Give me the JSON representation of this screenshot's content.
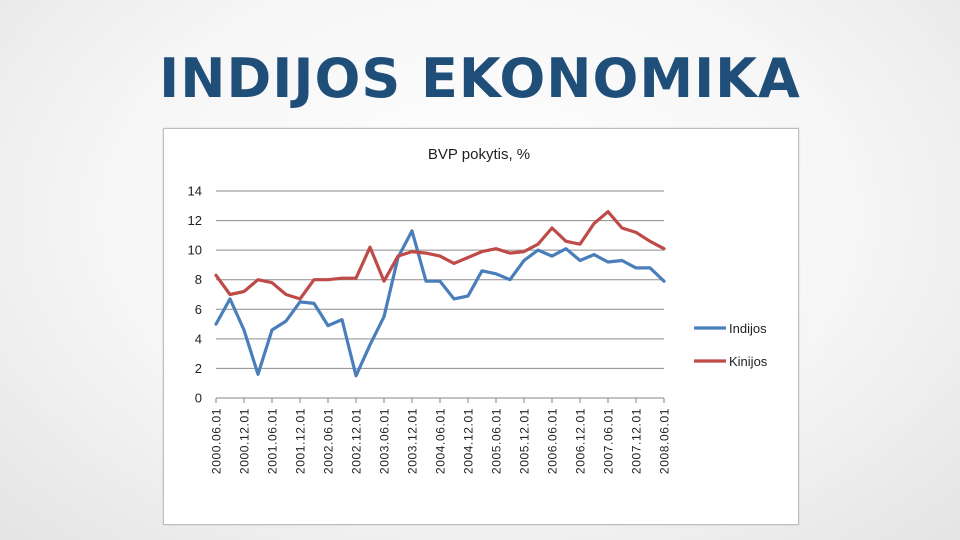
{
  "slide": {
    "title": "INDIJOS EKONOMIKA"
  },
  "chart_data": {
    "type": "line",
    "title": "BVP pokytis, %",
    "xlabel": "",
    "ylabel": "",
    "ylim": [
      0,
      14
    ],
    "yticks": [
      0,
      2,
      4,
      6,
      8,
      10,
      12,
      14
    ],
    "grid": "horizontal",
    "legend_position": "right",
    "x": [
      "2000.06.01",
      "2000.09.01",
      "2000.12.01",
      "2001.03.01",
      "2001.06.01",
      "2001.09.01",
      "2001.12.01",
      "2002.03.01",
      "2002.06.01",
      "2002.09.01",
      "2002.12.01",
      "2003.03.01",
      "2003.06.01",
      "2003.09.01",
      "2003.12.01",
      "2004.03.01",
      "2004.06.01",
      "2004.09.01",
      "2004.12.01",
      "2005.03.01",
      "2005.06.01",
      "2005.09.01",
      "2005.12.01",
      "2006.03.01",
      "2006.06.01",
      "2006.09.01",
      "2006.12.01",
      "2007.03.01",
      "2007.06.01",
      "2007.09.01",
      "2007.12.01",
      "2008.03.01",
      "2008.06.01"
    ],
    "x_tick_labels": [
      "2000.06.01",
      "2000.12.01",
      "2001.06.01",
      "2001.12.01",
      "2002.06.01",
      "2002.12.01",
      "2003.06.01",
      "2003.12.01",
      "2004.06.01",
      "2004.12.01",
      "2005.06.01",
      "2005.12.01",
      "2006.06.01",
      "2006.12.01",
      "2007.06.01",
      "2007.12.01",
      "2008.06.01"
    ],
    "series": [
      {
        "name": "Indijos",
        "color": "#4a7ebb",
        "values": [
          5.0,
          6.7,
          4.6,
          1.6,
          4.6,
          5.2,
          6.5,
          6.4,
          4.9,
          5.3,
          1.5,
          3.6,
          5.5,
          9.5,
          11.3,
          7.9,
          7.9,
          6.7,
          6.9,
          8.6,
          8.4,
          8.0,
          9.3,
          10.0,
          9.6,
          10.1,
          9.3,
          9.7,
          9.2,
          9.3,
          8.8,
          8.8,
          7.9
        ]
      },
      {
        "name": "Kinijos",
        "color": "#be4b48",
        "values": [
          8.3,
          7.0,
          7.2,
          8.0,
          7.8,
          7.0,
          6.7,
          8.0,
          8.0,
          8.1,
          8.1,
          10.2,
          7.9,
          9.6,
          9.9,
          9.8,
          9.6,
          9.1,
          9.5,
          9.9,
          10.1,
          9.8,
          9.9,
          10.4,
          11.5,
          10.6,
          10.4,
          11.8,
          12.6,
          11.5,
          11.2,
          10.6,
          10.1
        ]
      }
    ]
  }
}
